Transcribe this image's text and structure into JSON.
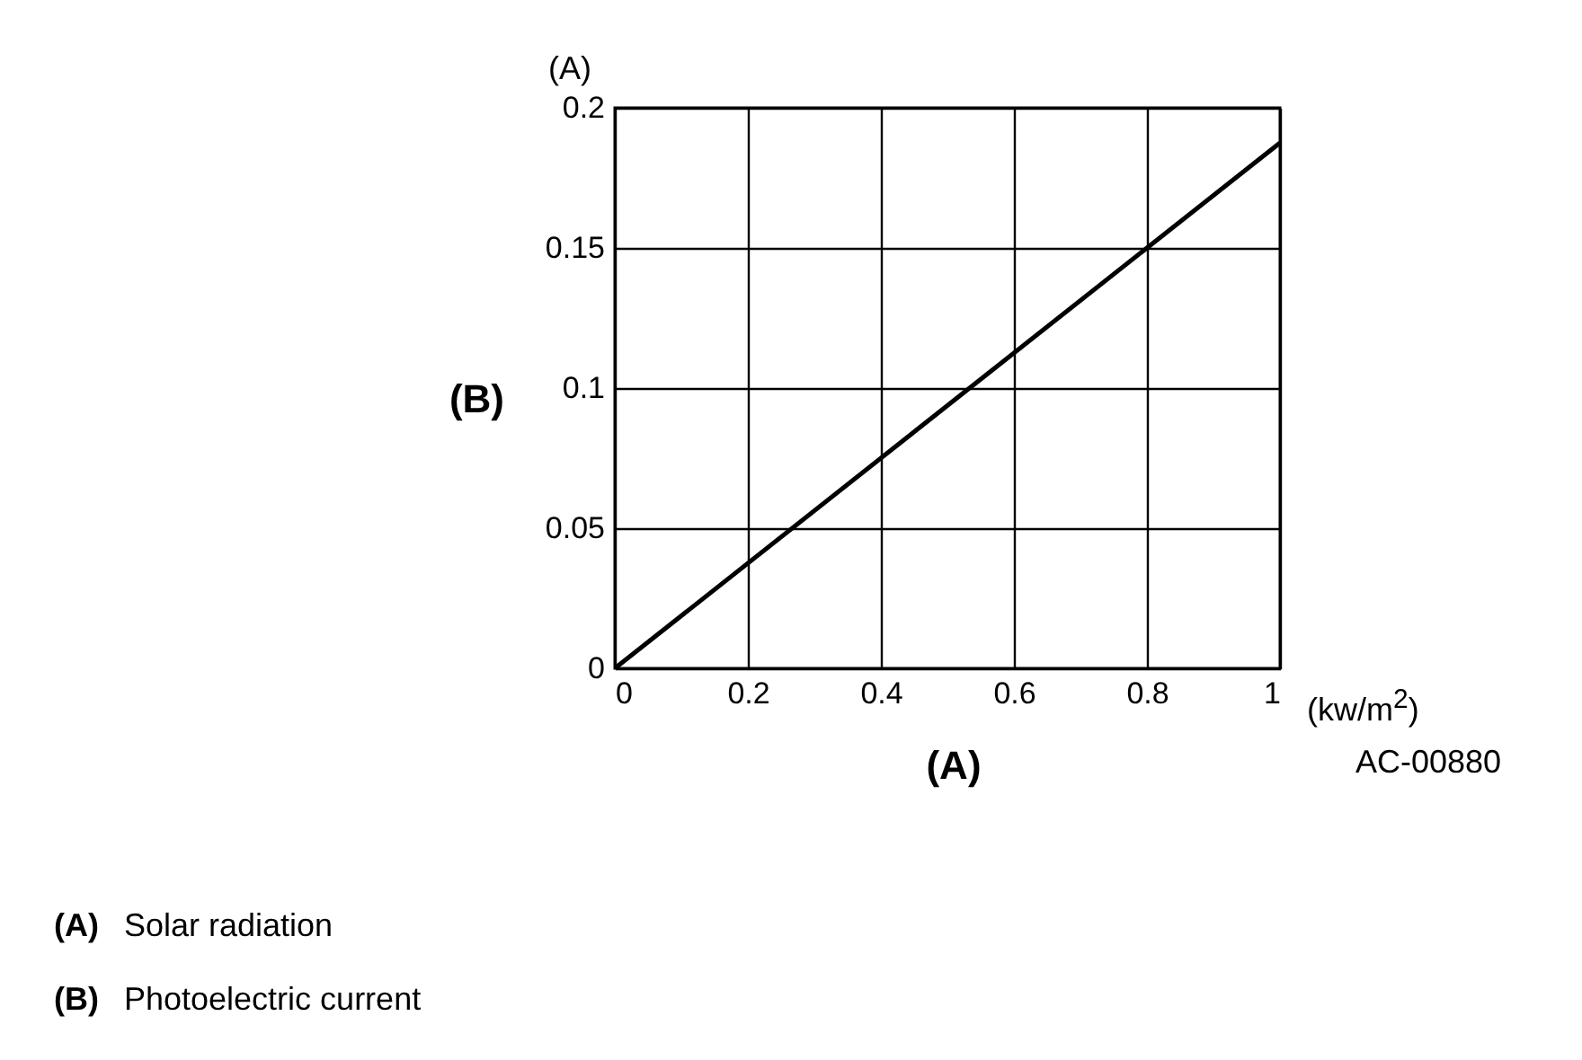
{
  "chart_data": {
    "type": "line",
    "xlabel": "(A)",
    "ylabel": "(B)",
    "x": [
      0,
      1
    ],
    "series": [
      {
        "color": "#000000",
        "values": [
          0,
          0.1875
        ]
      }
    ],
    "xlim": [
      0,
      1
    ],
    "ylim": [
      0,
      0.2
    ],
    "xticks": [
      0,
      0.2,
      0.4,
      0.6,
      0.8,
      1
    ],
    "yticks": [
      0,
      0.05,
      0.1,
      0.15,
      0.2
    ],
    "grid": true,
    "annotations": [
      "(A)",
      "(kw/m$^{2}$)",
      "AC-00880",
      "(A) Solar radiation",
      "(B) Photoelectric current"
    ]
  }
}
